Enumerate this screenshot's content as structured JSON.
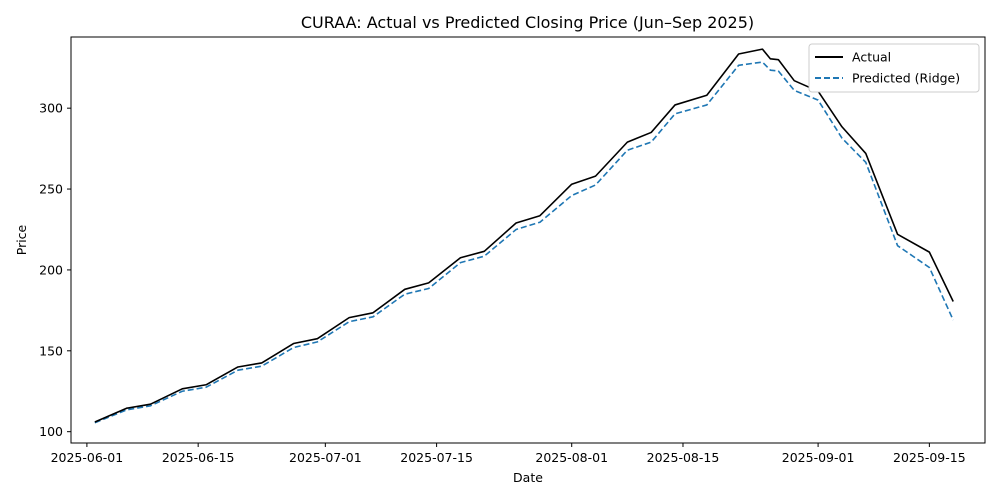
{
  "chart_data": {
    "type": "line",
    "title": "CURAA: Actual vs Predicted Closing Price (Jun–Sep 2025)",
    "xlabel": "Date",
    "ylabel": "Price",
    "xlim": [
      "2025-05-30",
      "2025-09-22"
    ],
    "ylim": [
      93,
      344
    ],
    "x_ticks": [
      "2025-06-01",
      "2025-06-15",
      "2025-07-01",
      "2025-07-15",
      "2025-08-01",
      "2025-08-15",
      "2025-09-01",
      "2025-09-15"
    ],
    "y_ticks": [
      100,
      150,
      200,
      250,
      300
    ],
    "grid": false,
    "legend_position": "top-right",
    "x": [
      "2025-06-02",
      "2025-06-06",
      "2025-06-09",
      "2025-06-13",
      "2025-06-16",
      "2025-06-20",
      "2025-06-23",
      "2025-06-27",
      "2025-06-30",
      "2025-07-04",
      "2025-07-07",
      "2025-07-11",
      "2025-07-14",
      "2025-07-18",
      "2025-07-21",
      "2025-07-25",
      "2025-07-28",
      "2025-08-01",
      "2025-08-04",
      "2025-08-08",
      "2025-08-11",
      "2025-08-14",
      "2025-08-18",
      "2025-08-22",
      "2025-08-25",
      "2025-08-26",
      "2025-08-27",
      "2025-08-29",
      "2025-09-01",
      "2025-09-04",
      "2025-09-07",
      "2025-09-11",
      "2025-09-15",
      "2025-09-18"
    ],
    "series": [
      {
        "name": "Actual",
        "color": "#000000",
        "style": "solid",
        "values": [
          106,
          114.5,
          117,
          126.5,
          129,
          140,
          142.5,
          154.5,
          157.5,
          170.5,
          173.5,
          188,
          192,
          207.5,
          211.5,
          229,
          233.5,
          253,
          258,
          279,
          285,
          302,
          308,
          333.5,
          336.5,
          330.5,
          330,
          317,
          310.5,
          288.5,
          272,
          222,
          211,
          180.5
        ]
      },
      {
        "name": "Predicted (Ridge)",
        "color": "#1f77b4",
        "style": "dashed",
        "values": [
          105.5,
          113.5,
          116,
          125,
          127.5,
          138,
          140.5,
          152,
          155.5,
          168,
          171,
          185,
          188.5,
          204.5,
          208.5,
          225,
          229.5,
          246,
          252.5,
          274,
          279,
          296.5,
          302,
          326.5,
          328.5,
          323.5,
          323,
          311,
          305,
          281.5,
          266.5,
          215,
          201.5,
          169
        ]
      }
    ]
  }
}
